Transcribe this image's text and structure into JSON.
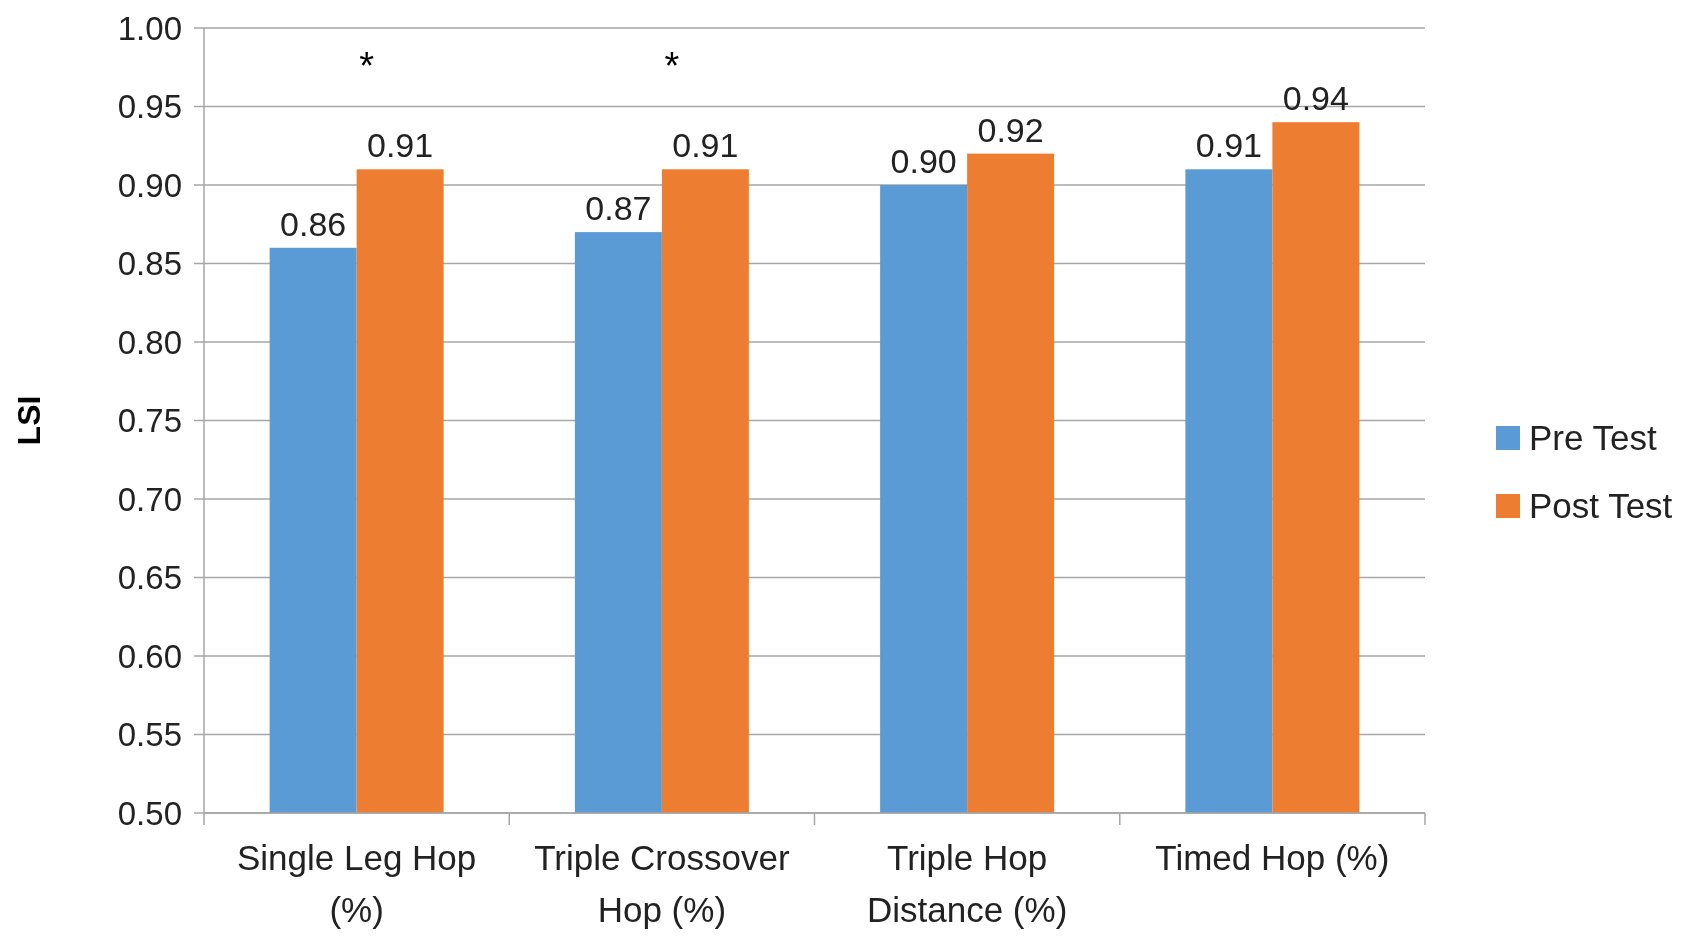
{
  "chart_data": {
    "type": "bar",
    "ylabel": "LSI",
    "categories": [
      "Single Leg Hop (%)",
      "Triple Crossover Hop (%)",
      "Triple Hop Distance (%)",
      "Timed Hop (%)"
    ],
    "series": [
      {
        "name": "Pre Test",
        "color": "#5b9bd5",
        "values": [
          0.86,
          0.87,
          0.9,
          0.91
        ],
        "value_labels": [
          "0.86",
          "0.87",
          "0.90",
          "0.91"
        ]
      },
      {
        "name": "Post Test",
        "color": "#ed7d31",
        "values": [
          0.91,
          0.91,
          0.92,
          0.94
        ],
        "value_labels": [
          "0.91",
          "0.91",
          "0.92",
          "0.94"
        ]
      }
    ],
    "ylim": [
      0.5,
      1.0
    ],
    "yticks": [
      {
        "value": 0.5,
        "label": "0.50"
      },
      {
        "value": 0.55,
        "label": "0.55"
      },
      {
        "value": 0.6,
        "label": "0.60"
      },
      {
        "value": 0.65,
        "label": "0.65"
      },
      {
        "value": 0.7,
        "label": "0.70"
      },
      {
        "value": 0.75,
        "label": "0.75"
      },
      {
        "value": 0.8,
        "label": "0.80"
      },
      {
        "value": 0.85,
        "label": "0.85"
      },
      {
        "value": 0.9,
        "label": "0.90"
      },
      {
        "value": 0.95,
        "label": "0.95"
      },
      {
        "value": 1.0,
        "label": "1.00"
      }
    ],
    "grid": "y",
    "legend": "right",
    "annotations": [
      "*",
      "*"
    ]
  }
}
